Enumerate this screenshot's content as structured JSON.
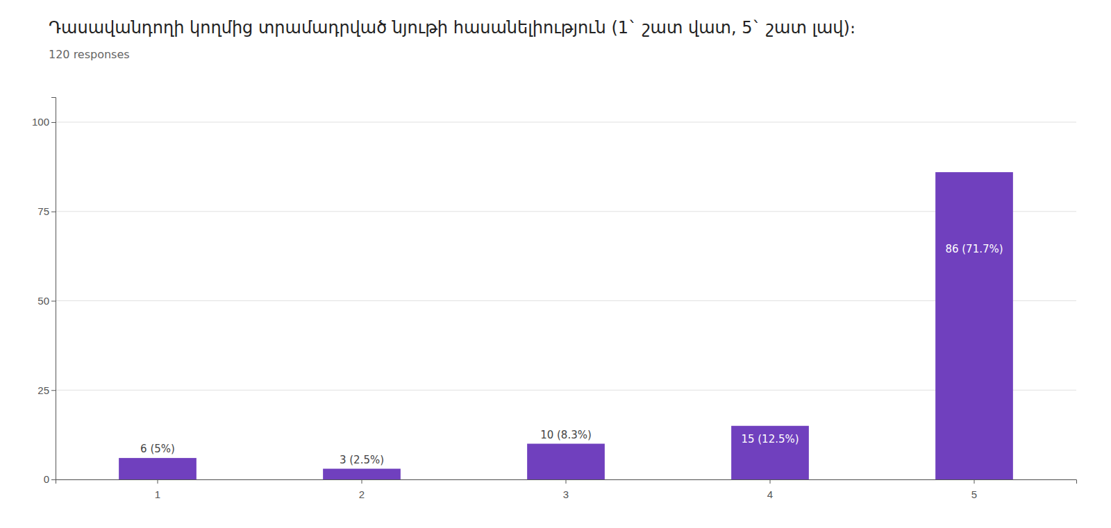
{
  "chart_data": {
    "type": "bar",
    "title": "Դասավանդողի կողմից տրամադրված նյութի հասանելիություն (1` շատ վատ, 5` շատ լավ)։",
    "subtitle": "120 responses",
    "categories": [
      "1",
      "2",
      "3",
      "4",
      "5"
    ],
    "values": [
      6,
      3,
      10,
      15,
      86
    ],
    "value_labels": [
      "6 (5%)",
      "3 (2.5%)",
      "10 (8.3%)",
      "15 (12.5%)",
      "86 (71.7%)"
    ],
    "color": "#7040BE",
    "ylim": [
      0,
      107
    ],
    "yticks": [
      0,
      25,
      50,
      75,
      100
    ],
    "grid": true
  }
}
